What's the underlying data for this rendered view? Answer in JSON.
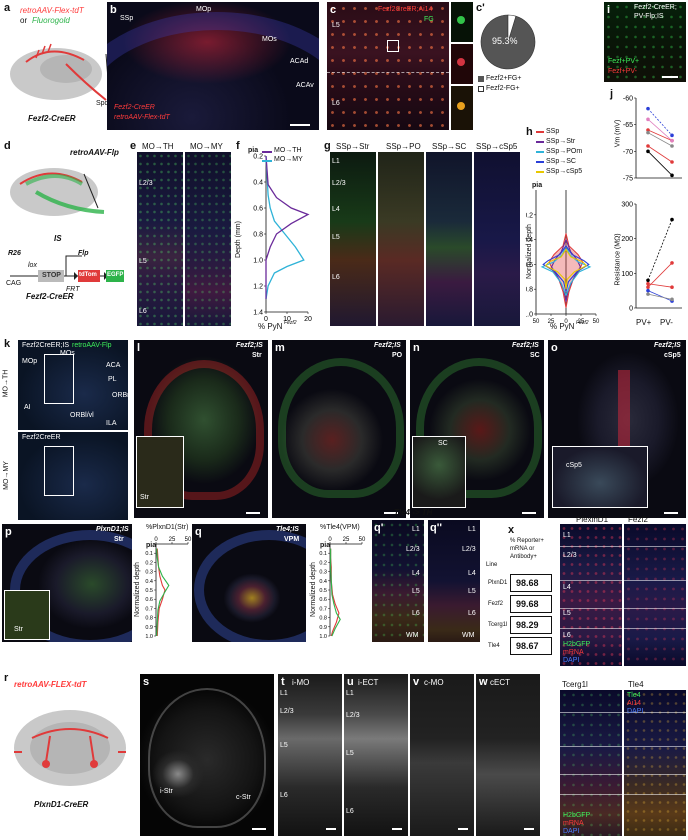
{
  "panels": {
    "a": {
      "letter": "a",
      "vector": "retroAAV-Flex-tdT",
      "or": "or",
      "alt": "Fluorogold",
      "injection": "Spd",
      "mouse": "Fezf2-CreER"
    },
    "b": {
      "letter": "b",
      "regions": [
        "SSp",
        "MOp",
        "MOs",
        "ACAd",
        "ACAv"
      ],
      "legend1": "Fezf2-CreER",
      "legend2": "retroAAV-Flex-tdT"
    },
    "c": {
      "letter": "c",
      "title": "Fezf2CreER;Ai14",
      "fg": "FG",
      "layer1": "L5",
      "layer2": "L6"
    },
    "c2": {
      "letter": "c'",
      "percent": "95.3%",
      "legend1": "Fezf2+FG+",
      "legend2": "Fezf2-FG+"
    },
    "i": {
      "letter": "i",
      "title1": "Fezf2-CreER;",
      "title2": "PV-Flp;IS",
      "leg1": "Fezf+PV+",
      "leg2": "Fezf+PV-"
    },
    "d": {
      "letter": "d",
      "vector": "retroAAV-Flp",
      "is": "IS",
      "r26": "R26",
      "lox": "lox",
      "cag": "CAG",
      "stop": "STOP",
      "frt": "FRT",
      "flp": "Flp",
      "tdtom": "tdTom",
      "egfp": "EGFP",
      "mouse": "Fezf2-CreER"
    },
    "e": {
      "letter": "e",
      "col1": "MO→TH",
      "col2": "MO→MY",
      "l23": "L2/3",
      "l5": "L5",
      "l6": "L6"
    },
    "f": {
      "letter": "f",
      "pia": "pia",
      "ylabel": "Depth (mm)",
      "xlabel": "% PyN",
      "sup": "Fezf2",
      "leg1": "MO→TH",
      "leg2": "MO→MY"
    },
    "g": {
      "letter": "g",
      "cols": [
        "SSp→Str",
        "SSp→PO",
        "SSp→SC",
        "SSp→cSp5"
      ],
      "layers": [
        "L1",
        "L2/3",
        "L4",
        "L5",
        "L6"
      ]
    },
    "h": {
      "letter": "h",
      "pia": "pia",
      "ylabel": "Normalized depth",
      "xlabel": "% PyN",
      "sup": "Fezf2",
      "legend": [
        "SSp",
        "SSp→Str",
        "SSp→POm",
        "SSp→SC",
        "SSp→cSp5"
      ]
    },
    "j": {
      "letter": "j",
      "ylabel1": "Vm (mV)",
      "ylabel2": "Resistance (MΩ)",
      "xcats": [
        "PV+",
        "PV-"
      ]
    },
    "k": {
      "letter": "k",
      "title1": "Fezf2CreER;IS",
      "title1b": "retroAAV-Flp",
      "title2": "Fezf2CreER",
      "row1": "MO→TH",
      "row2": "MO→MY",
      "regions": [
        "MOs",
        "MOp",
        "ACA",
        "PL",
        "ORBm",
        "ORBl/vl",
        "AI",
        "ILA"
      ]
    },
    "l": {
      "letter": "l",
      "title": "Fezf2;IS",
      "target": "Str",
      "inset": "Str"
    },
    "m": {
      "letter": "m",
      "title": "Fezf2;IS",
      "target": "PO"
    },
    "n": {
      "letter": "n",
      "title": "Fezf2;IS",
      "target": "SC",
      "inset": "SC"
    },
    "o": {
      "letter": "o",
      "title": "Fezf2;IS",
      "target": "cSp5",
      "inset": "cSp5"
    },
    "p": {
      "letter": "p",
      "title": "PlxnD1;IS",
      "target": "Str",
      "inset": "Str",
      "plot_title": "%PlxnD1(Str)",
      "ylabel": "Normalized depth",
      "pia": "pia"
    },
    "q": {
      "letter": "q",
      "title": "Tle4;IS",
      "target": "VPM",
      "plot_title": "%Tle4(VPM)",
      "ylabel": "Normalized depth",
      "pia": "pia"
    },
    "q1": {
      "letter": "q'",
      "header": "Tle4 -> TH",
      "layers": [
        "L1",
        "L2/3",
        "L4",
        "L5",
        "L6",
        "WM"
      ]
    },
    "q2": {
      "letter": "q''",
      "layers": [
        "L1",
        "L2/3",
        "L4",
        "L5",
        "L6",
        "WM"
      ]
    },
    "x": {
      "letter": "x",
      "header1": "% Reporter+",
      "header2": "mRNA or",
      "header3": "Antibody+",
      "line_label": "Line",
      "rows": [
        {
          "line": "PlxnD1",
          "value": "98.68"
        },
        {
          "line": "Fezf2",
          "value": "99.68"
        },
        {
          "line": "Tcerg1l",
          "value": "98.29"
        },
        {
          "line": "Tle4",
          "value": "98.67"
        }
      ],
      "micro_titles": [
        "PlexinD1",
        "Fezf2",
        "Tcerg1l",
        "Tle4"
      ],
      "layers": [
        "L1",
        "L2/3",
        "L4",
        "L5",
        "L6"
      ],
      "leg_h2b": "H2bGFP",
      "leg_mrna": "mRNA",
      "leg_dapi": "DAPI",
      "leg_tle4": "Tle4",
      "leg_ai14": "Ai14"
    },
    "r": {
      "letter": "r",
      "vector": "retroAAV-FLEX-tdT",
      "mouse": "PlxnD1-CreER"
    },
    "s": {
      "letter": "s",
      "left": "i-Str",
      "right": "c-Str"
    },
    "t": {
      "letter": "t",
      "title": "i-MO",
      "layers": [
        "L1",
        "L2/3",
        "L5",
        "L6"
      ]
    },
    "u": {
      "letter": "u",
      "title": "i-ECT",
      "layers": [
        "L1",
        "L2/3",
        "L5",
        "L6"
      ]
    },
    "v": {
      "letter": "v",
      "title": "c-MO"
    },
    "w": {
      "letter": "w",
      "title": "cECT"
    }
  },
  "chart_data": [
    {
      "type": "pie",
      "panel": "c'",
      "labels": [
        "Fezf2+FG+",
        "Fezf2-FG+"
      ],
      "values": [
        95.3,
        4.7
      ],
      "colors": [
        "#555555",
        "#ffffff"
      ]
    },
    {
      "type": "line",
      "panel": "f",
      "xlabel": "% PyN Fezf2",
      "ylabel": "Depth (mm)",
      "xlim": [
        0,
        20
      ],
      "ylim": [
        0.2,
        1.4
      ],
      "xticks": [
        0,
        10,
        20
      ],
      "yticks": [
        0.2,
        0.4,
        0.6,
        0.8,
        1.0,
        1.2,
        1.4
      ],
      "series": [
        {
          "name": "MO→TH",
          "color": "#2fb3d8",
          "x": [
            0,
            1,
            2,
            4,
            9,
            14,
            18,
            10,
            4,
            1,
            0
          ],
          "y": [
            0.2,
            0.5,
            0.6,
            0.7,
            0.8,
            0.9,
            1.0,
            1.05,
            1.1,
            1.2,
            1.3
          ]
        },
        {
          "name": "MO→MY",
          "color": "#6a2a9a",
          "x": [
            0,
            1,
            5,
            12,
            20,
            12,
            5,
            2,
            0,
            0
          ],
          "y": [
            0.2,
            0.42,
            0.52,
            0.6,
            0.65,
            0.72,
            0.8,
            0.9,
            1.0,
            1.3
          ]
        }
      ]
    },
    {
      "type": "area",
      "panel": "h",
      "xlabel": "% PyN Fezf2",
      "ylabel": "Normalized depth",
      "xlim": [
        0,
        50
      ],
      "ylim": [
        0,
        1.0
      ],
      "xticks": [
        0,
        25,
        50
      ],
      "xticklabels": [
        "50",
        "25",
        "0",
        "25",
        "50"
      ],
      "yticks": [
        0.2,
        0.4,
        0.6,
        0.8,
        1.0
      ],
      "series": [
        {
          "name": "SSp",
          "color": "#e03a3a",
          "x": [
            0,
            5,
            20,
            28,
            22,
            12,
            5,
            0
          ],
          "y": [
            0.35,
            0.45,
            0.52,
            0.58,
            0.65,
            0.72,
            0.82,
            0.95
          ]
        },
        {
          "name": "SSp→Str",
          "color": "#6a2a9a",
          "x": [
            0,
            8,
            18,
            24,
            14,
            4,
            0
          ],
          "y": [
            0.4,
            0.5,
            0.56,
            0.62,
            0.7,
            0.8,
            0.9
          ]
        },
        {
          "name": "SSp→POm",
          "color": "#2fb3d8",
          "x": [
            0,
            6,
            20,
            40,
            22,
            8,
            0
          ],
          "y": [
            0.45,
            0.52,
            0.58,
            0.62,
            0.66,
            0.75,
            0.85
          ]
        },
        {
          "name": "SSp→SC",
          "color": "#2b3fd8",
          "x": [
            0,
            10,
            30,
            38,
            18,
            4,
            0
          ],
          "y": [
            0.45,
            0.52,
            0.57,
            0.6,
            0.66,
            0.74,
            0.82
          ]
        },
        {
          "name": "SSp→cSp5",
          "color": "#e8c800",
          "x": [
            0,
            8,
            28,
            34,
            14,
            2,
            0
          ],
          "y": [
            0.48,
            0.54,
            0.58,
            0.61,
            0.66,
            0.72,
            0.8
          ]
        }
      ]
    },
    {
      "type": "line",
      "panel": "j-top",
      "ylabel": "Vm (mV)",
      "ylim": [
        -75,
        -60
      ],
      "yticks": [
        -60,
        -65,
        -70,
        -75
      ],
      "categories": [
        "PV+",
        "PV-"
      ],
      "series": [
        {
          "name": "",
          "color": "#2b3fd8",
          "values": [
            -62,
            -67
          ]
        },
        {
          "name": "",
          "color": "#e03a3a",
          "values": [
            -66,
            -68
          ]
        },
        {
          "name": "",
          "color": "#e03a3a",
          "values": [
            -69,
            -72
          ]
        },
        {
          "name": "",
          "color": "#888888",
          "values": [
            -66.5,
            -69
          ]
        },
        {
          "name": "",
          "color": "#000000",
          "values": [
            -70,
            -74.5
          ]
        },
        {
          "name": "",
          "color": "#e080c0",
          "values": [
            -64,
            -68
          ]
        }
      ]
    },
    {
      "type": "line",
      "panel": "j-bottom",
      "ylabel": "Resistance (MΩ)",
      "ylim": [
        0,
        300
      ],
      "yticks": [
        0,
        100,
        200,
        300
      ],
      "categories": [
        "PV+",
        "PV-"
      ],
      "series": [
        {
          "name": "",
          "color": "#000000",
          "values": [
            80,
            255
          ]
        },
        {
          "name": "",
          "color": "#e03a3a",
          "values": [
            60,
            130
          ]
        },
        {
          "name": "",
          "color": "#2b3fd8",
          "values": [
            50,
            20
          ]
        },
        {
          "name": "",
          "color": "#888888",
          "values": [
            40,
            25
          ]
        },
        {
          "name": "",
          "color": "#e03a3a",
          "values": [
            70,
            60
          ]
        }
      ]
    },
    {
      "type": "line",
      "panel": "p",
      "title": "%PlxnD1(Str)",
      "ylabel": "Normalized depth",
      "xlim": [
        0,
        50
      ],
      "xticks": [
        0,
        25,
        50
      ],
      "yticks": [
        0.1,
        0.2,
        0.3,
        0.4,
        0.5,
        0.6,
        0.7,
        0.8,
        0.9,
        1.0
      ],
      "series": [
        {
          "name": "",
          "color": "#e03a3a",
          "x": [
            2,
            3,
            4,
            6,
            10,
            14,
            10,
            5,
            3,
            2
          ],
          "y": [
            0.05,
            0.15,
            0.25,
            0.35,
            0.45,
            0.5,
            0.6,
            0.7,
            0.85,
            1.0
          ]
        },
        {
          "name": "",
          "color": "#2db34a",
          "x": [
            1,
            2,
            4,
            10,
            20,
            14,
            6,
            3,
            2,
            1
          ],
          "y": [
            0.05,
            0.15,
            0.25,
            0.35,
            0.45,
            0.52,
            0.62,
            0.72,
            0.85,
            1.0
          ]
        }
      ]
    },
    {
      "type": "line",
      "panel": "q",
      "title": "%Tle4(VPM)",
      "ylabel": "Normalized depth",
      "xlim": [
        0,
        50
      ],
      "xticks": [
        0,
        25,
        50
      ],
      "yticks": [
        0.1,
        0.2,
        0.3,
        0.4,
        0.5,
        0.6,
        0.7,
        0.8,
        0.9,
        1.0
      ],
      "series": [
        {
          "name": "",
          "color": "#e03a3a",
          "x": [
            1,
            1,
            2,
            2,
            4,
            8,
            14,
            10,
            4,
            2
          ],
          "y": [
            0.05,
            0.15,
            0.25,
            0.4,
            0.55,
            0.65,
            0.75,
            0.85,
            0.95,
            1.0
          ]
        },
        {
          "name": "",
          "color": "#2db34a",
          "x": [
            1,
            1,
            1,
            2,
            3,
            6,
            10,
            16,
            8,
            3
          ],
          "y": [
            0.05,
            0.15,
            0.25,
            0.4,
            0.55,
            0.65,
            0.75,
            0.82,
            0.92,
            1.0
          ]
        }
      ]
    }
  ]
}
